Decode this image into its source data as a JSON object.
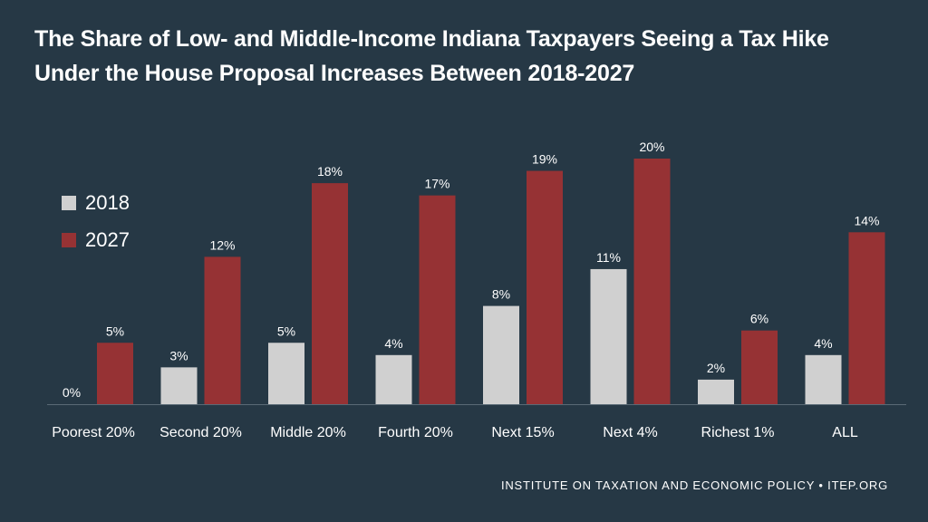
{
  "title_lines": [
    "The Share of Low- and Middle-Income Indiana Taxpayers Seeing a Tax Hike",
    "Under the House Proposal Increases Between 2018-2027"
  ],
  "footer": "INSTITUTE ON TAXATION AND ECONOMIC POLICY • ITEP.ORG",
  "colors": {
    "background": "#263845",
    "series_2018": "#d0d0d0",
    "series_2027": "#963234",
    "text": "#ffffff"
  },
  "chart_data": {
    "type": "bar",
    "title": "The Share of Low- and Middle-Income Indiana Taxpayers Seeing a Tax Hike Under the House Proposal Increases Between 2018-2027",
    "categories": [
      "Poorest 20%",
      "Second 20%",
      "Middle 20%",
      "Fourth 20%",
      "Next 15%",
      "Next 4%",
      "Richest 1%",
      "ALL"
    ],
    "series": [
      {
        "name": "2018",
        "values": [
          0,
          3,
          5,
          4,
          8,
          11,
          2,
          4
        ],
        "labels": [
          "0%",
          "3%",
          "5%",
          "4%",
          "8%",
          "11%",
          "2%",
          "4%"
        ]
      },
      {
        "name": "2027",
        "values": [
          5,
          12,
          18,
          17,
          19,
          20,
          6,
          14
        ],
        "labels": [
          "5%",
          "12%",
          "18%",
          "17%",
          "19%",
          "20%",
          "6%",
          "14%"
        ]
      }
    ],
    "xlabel": "",
    "ylabel": "",
    "ylim": [
      0,
      20
    ],
    "grid": false,
    "legend": "left"
  }
}
